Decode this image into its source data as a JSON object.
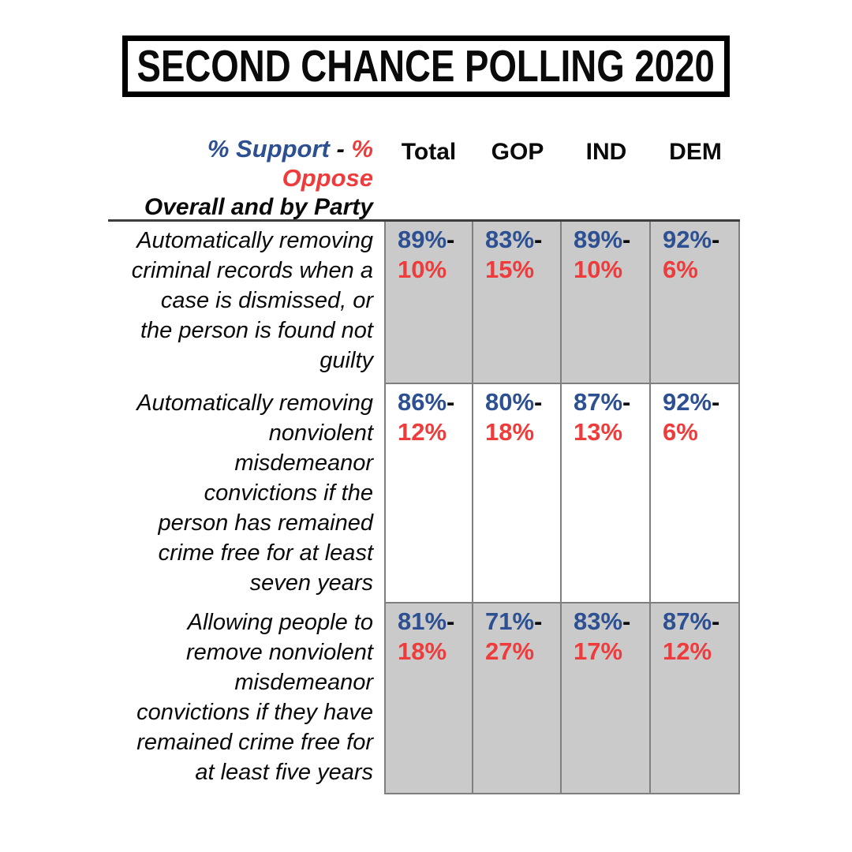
{
  "title": {
    "text": "SECOND CHANCE POLLING 2020"
  },
  "header": {
    "pct_support": "% Support",
    "dash": " - ",
    "pct": "%",
    "oppose": "Oppose",
    "subtitle": "Overall and by Party",
    "columns": [
      "Total",
      "GOP",
      "IND",
      "DEM"
    ]
  },
  "table": {
    "dash": "-",
    "rows": [
      {
        "question": "Automatically removing\ncriminal records when a\ncase is dismissed, or\nthe person is found not\nguilty",
        "cells": [
          {
            "support": "89%",
            "oppose": "10%"
          },
          {
            "support": "83%",
            "oppose": "15%"
          },
          {
            "support": "89%",
            "oppose": "10%"
          },
          {
            "support": "92%",
            "oppose": "6%"
          }
        ]
      },
      {
        "question": "Automatically removing\nnonviolent\nmisdemeanor\nconvictions if the\nperson has remained\ncrime free for at least\nseven years",
        "cells": [
          {
            "support": "86%",
            "oppose": "12%"
          },
          {
            "support": "80%",
            "oppose": "18%"
          },
          {
            "support": "87%",
            "oppose": "13%"
          },
          {
            "support": "92%",
            "oppose": "6%"
          }
        ]
      },
      {
        "question": "Allowing people to\nremove nonviolent\nmisdemeanor\nconvictions if they have\nremained crime free for\nat least five years",
        "cells": [
          {
            "support": "81%",
            "oppose": "18%"
          },
          {
            "support": "71%",
            "oppose": "27%"
          },
          {
            "support": "83%",
            "oppose": "17%"
          },
          {
            "support": "87%",
            "oppose": "12%"
          }
        ]
      }
    ]
  },
  "colors": {
    "support_blue": "#2d5092",
    "oppose_red": "#ee3c3c",
    "shaded_cell": "#cacaca",
    "cell_border": "#7f7f7f",
    "header_rule": "#3d3d3d"
  },
  "chart_data": {
    "type": "table",
    "title": "SECOND CHANCE POLLING 2020",
    "legend": "% Support - % Oppose, Overall and by Party",
    "columns": [
      "Total",
      "GOP",
      "IND",
      "DEM"
    ],
    "rows": [
      {
        "label": "Automatically removing criminal records when a case is dismissed, or the person is found not guilty",
        "support": [
          89,
          83,
          89,
          92
        ],
        "oppose": [
          10,
          15,
          10,
          6
        ]
      },
      {
        "label": "Automatically removing nonviolent misdemeanor convictions if the person has remained crime free for at least seven years",
        "support": [
          86,
          80,
          87,
          92
        ],
        "oppose": [
          12,
          18,
          13,
          6
        ]
      },
      {
        "label": "Allowing people to remove nonviolent misdemeanor convictions if they have remained crime free for at least five years",
        "support": [
          81,
          71,
          83,
          87
        ],
        "oppose": [
          18,
          27,
          17,
          12
        ]
      }
    ]
  }
}
